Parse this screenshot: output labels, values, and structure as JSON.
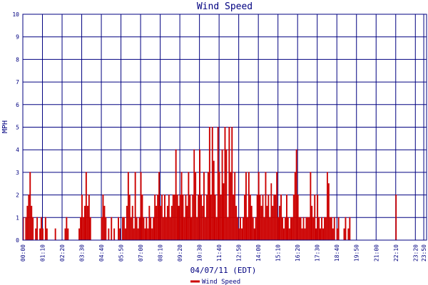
{
  "chart_data": {
    "type": "line",
    "title": "Wind Speed",
    "xlabel": "04/07/11 (EDT)",
    "ylabel": "MPH",
    "ylim": [
      0,
      10
    ],
    "yticks": [
      "0",
      "1",
      "2",
      "3",
      "4",
      "5",
      "6",
      "7",
      "8",
      "9",
      "10"
    ],
    "xticks": [
      "00:00",
      "01:10",
      "02:20",
      "03:30",
      "04:40",
      "05:50",
      "07:00",
      "08:10",
      "09:20",
      "10:30",
      "11:40",
      "12:50",
      "14:00",
      "15:10",
      "16:20",
      "17:30",
      "18:40",
      "19:50",
      "21:00",
      "22:10",
      "23:20",
      "23:50"
    ],
    "x_interval_minutes": 5,
    "grid": true,
    "legend_placement": "bottom",
    "colors": {
      "series": "#cc0000",
      "grid": "#000080",
      "text": "#000080"
    },
    "series": [
      {
        "name": "Wind Speed",
        "values": [
          1,
          0,
          1,
          1.5,
          2,
          3,
          1.5,
          1,
          0,
          0.5,
          1,
          0,
          0.5,
          1,
          0.5,
          0,
          1,
          0.5,
          0,
          0,
          0,
          0,
          0,
          0.5,
          0,
          0,
          0,
          0,
          0,
          0,
          0.5,
          1,
          0.5,
          0,
          0,
          0,
          0,
          0,
          0,
          0,
          0.5,
          1,
          2,
          1,
          1.5,
          3,
          1.5,
          2,
          1,
          0,
          0,
          0,
          0,
          0,
          0,
          0,
          1,
          2,
          1.5,
          1,
          0,
          0.5,
          0,
          1,
          0,
          0.5,
          0,
          0,
          1,
          0.5,
          0,
          1,
          1,
          0.5,
          1.5,
          3,
          2,
          1,
          1.5,
          0.5,
          3,
          1,
          0.5,
          1,
          3,
          2,
          1,
          0.5,
          1,
          0.5,
          1.5,
          1,
          0.5,
          1,
          2,
          1.5,
          2,
          3,
          1.5,
          2,
          1,
          2,
          1,
          1.5,
          2,
          1,
          1.5,
          2,
          2,
          4,
          2,
          1.5,
          2,
          3,
          2,
          1,
          2,
          1.5,
          3,
          2,
          1,
          2,
          4,
          3,
          1,
          2,
          4,
          2,
          1.5,
          3,
          1,
          2,
          3,
          5,
          2,
          5,
          3.5,
          2,
          1,
          5,
          3,
          2,
          4,
          2.5,
          5,
          4,
          1,
          5,
          3,
          5,
          2,
          3,
          1.5,
          1,
          0.5,
          1,
          0.5,
          1,
          2,
          3,
          1,
          3,
          2,
          1.5,
          1,
          0.5,
          1,
          2,
          3,
          2,
          1.5,
          2,
          1,
          3,
          1.5,
          2,
          1,
          2.5,
          1.5,
          2,
          2,
          3,
          1,
          1.5,
          2,
          1,
          0.5,
          1,
          2,
          1,
          0.5,
          1,
          1,
          2,
          3,
          4,
          2,
          1,
          1,
          0.5,
          1,
          0.5,
          1,
          1,
          1,
          3,
          1.5,
          1,
          2,
          0.5,
          2,
          1,
          0.5,
          1,
          0.5,
          1,
          1,
          3,
          2.5,
          1,
          1,
          0.5,
          1,
          0,
          0.5,
          1,
          0,
          0,
          0,
          0.5,
          1,
          0,
          0.5,
          1,
          0,
          0,
          0,
          0,
          0,
          0,
          0,
          0,
          0,
          0,
          0,
          0,
          0,
          0,
          0,
          0,
          0,
          0,
          0,
          0,
          0,
          0,
          0,
          0,
          0,
          0,
          0,
          0,
          0,
          0,
          0,
          0,
          2,
          0,
          0,
          0,
          0,
          0,
          0,
          0,
          0,
          0,
          0,
          0,
          0,
          0,
          0,
          0,
          0,
          0,
          0,
          0,
          0,
          0
        ]
      }
    ]
  }
}
